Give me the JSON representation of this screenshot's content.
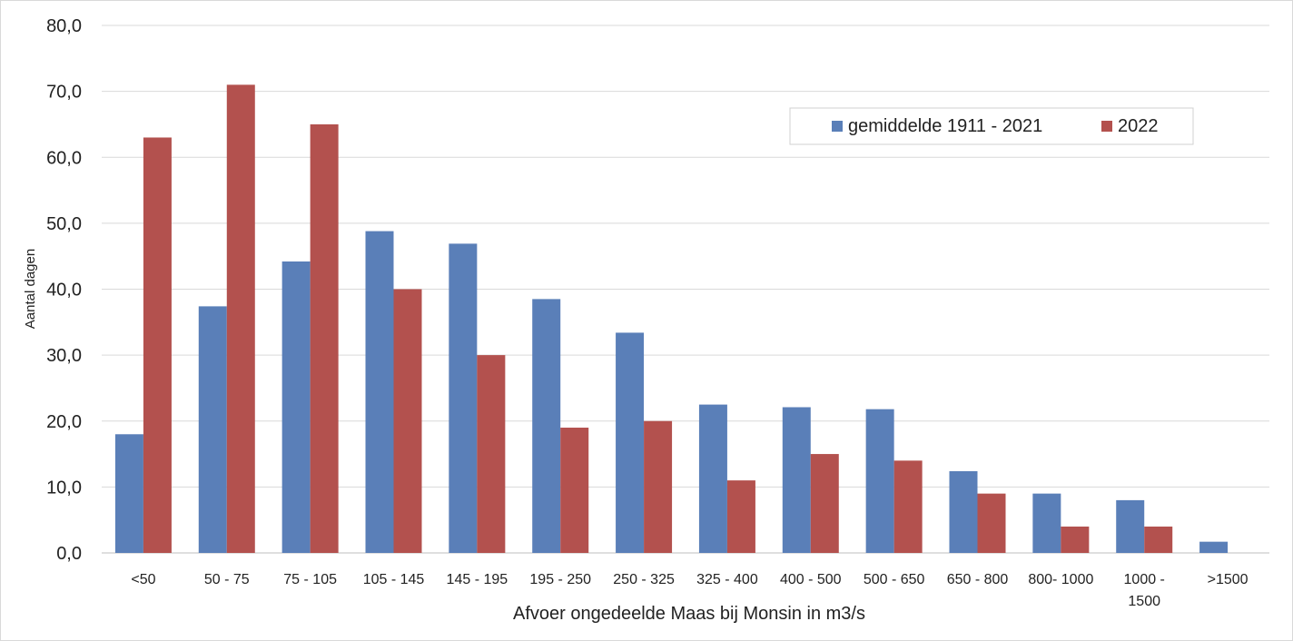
{
  "chart_data": {
    "type": "bar",
    "title": "",
    "xlabel": "Afvoer ongedeelde Maas bij Monsin in m3/s",
    "ylabel": "Aantal dagen",
    "ylim": [
      0,
      80
    ],
    "y_ticks": [
      "0,0",
      "10,0",
      "20,0",
      "30,0",
      "40,0",
      "50,0",
      "60,0",
      "70,0",
      "80,0"
    ],
    "grid": "horizontal",
    "legend_position": "top-right",
    "categories": [
      [
        "<50"
      ],
      [
        "50 - 75"
      ],
      [
        "75 - 105"
      ],
      [
        "105 - 145"
      ],
      [
        "145 - 195"
      ],
      [
        "195 - 250"
      ],
      [
        "250 - 325"
      ],
      [
        "325 - 400"
      ],
      [
        "400 - 500"
      ],
      [
        "500 - 650"
      ],
      [
        "650 - 800"
      ],
      [
        "800- 1000"
      ],
      [
        "1000 -",
        "1500"
      ],
      [
        ">1500"
      ]
    ],
    "series": [
      {
        "name": "gemiddelde 1911 - 2021",
        "color": "#5a7fb8",
        "values": [
          18.0,
          37.4,
          44.2,
          48.8,
          46.9,
          38.5,
          33.4,
          22.5,
          22.1,
          21.8,
          12.4,
          9.0,
          8.0,
          1.7
        ]
      },
      {
        "name": "2022",
        "color": "#b3514e",
        "values": [
          63,
          71,
          65,
          40,
          30,
          19,
          20,
          11,
          15,
          14,
          9,
          4,
          4,
          0
        ]
      }
    ]
  }
}
